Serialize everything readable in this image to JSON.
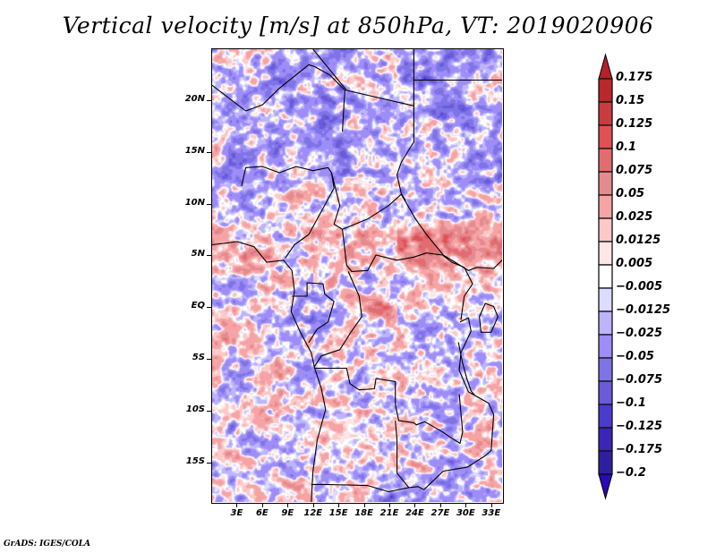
{
  "title": "Vertical velocity [m/s] at 850hPa, VT: 2019020906",
  "credit": "GrADS: IGES/COLA",
  "chart_data": {
    "type": "heatmap",
    "title": "Vertical velocity [m/s] at 850hPa, VT: 2019020906",
    "variable": "Vertical velocity",
    "units": "m/s",
    "level": "850hPa",
    "valid_time": "2019020906",
    "xlabel": "",
    "ylabel": "",
    "x_range_deg": [
      0,
      34.5
    ],
    "y_range_deg": [
      -19,
      25
    ],
    "x_ticks": [
      "3E",
      "6E",
      "9E",
      "12E",
      "15E",
      "18E",
      "21E",
      "24E",
      "27E",
      "30E",
      "33E"
    ],
    "x_tick_values": [
      3,
      6,
      9,
      12,
      15,
      18,
      21,
      24,
      27,
      30,
      33
    ],
    "y_ticks": [
      "20N",
      "15N",
      "10N",
      "5N",
      "EQ",
      "5S",
      "10S",
      "15S"
    ],
    "y_tick_values": [
      20,
      15,
      10,
      5,
      0,
      -5,
      -10,
      -15
    ],
    "colorbar": {
      "levels": [
        0.175,
        0.15,
        0.125,
        0.1,
        0.075,
        0.05,
        0.025,
        0.0125,
        0.005,
        -0.005,
        -0.0125,
        -0.025,
        -0.05,
        -0.075,
        -0.1,
        -0.125,
        -0.175,
        -0.2
      ],
      "labels": [
        "0.175",
        "0.15",
        "0.125",
        "0.1",
        "0.075",
        "0.05",
        "0.025",
        "0.0125",
        "0.005",
        "−0.005",
        "−0.0125",
        "−0.025",
        "−0.05",
        "−0.075",
        "−0.1",
        "−0.125",
        "−0.175",
        "−0.2"
      ],
      "top_arrow_color": "#b22228",
      "bottom_arrow_color": "#2a0ab4",
      "colors": [
        "#b8282c",
        "#c93b3f",
        "#e05055",
        "#e36c72",
        "#e58a8f",
        "#f5a3a5",
        "#fcc8c8",
        "#fde6e6",
        "#ffffff",
        "#dcdcff",
        "#bdb4fc",
        "#9e8cf8",
        "#7f74e6",
        "#6b5ad9",
        "#4a3bcc",
        "#3b24b8",
        "#2e1f9e"
      ],
      "extend": "both"
    },
    "notable_features": [
      "Positive (red) band along ~5N from 0E to 33E",
      "Strong positive streak near EQ around 15E-19E",
      "Broad mixed small-scale field with negative (blue) patches over Sahara region",
      "Near-neutral (white) area around 12S, 15E-18E"
    ]
  }
}
